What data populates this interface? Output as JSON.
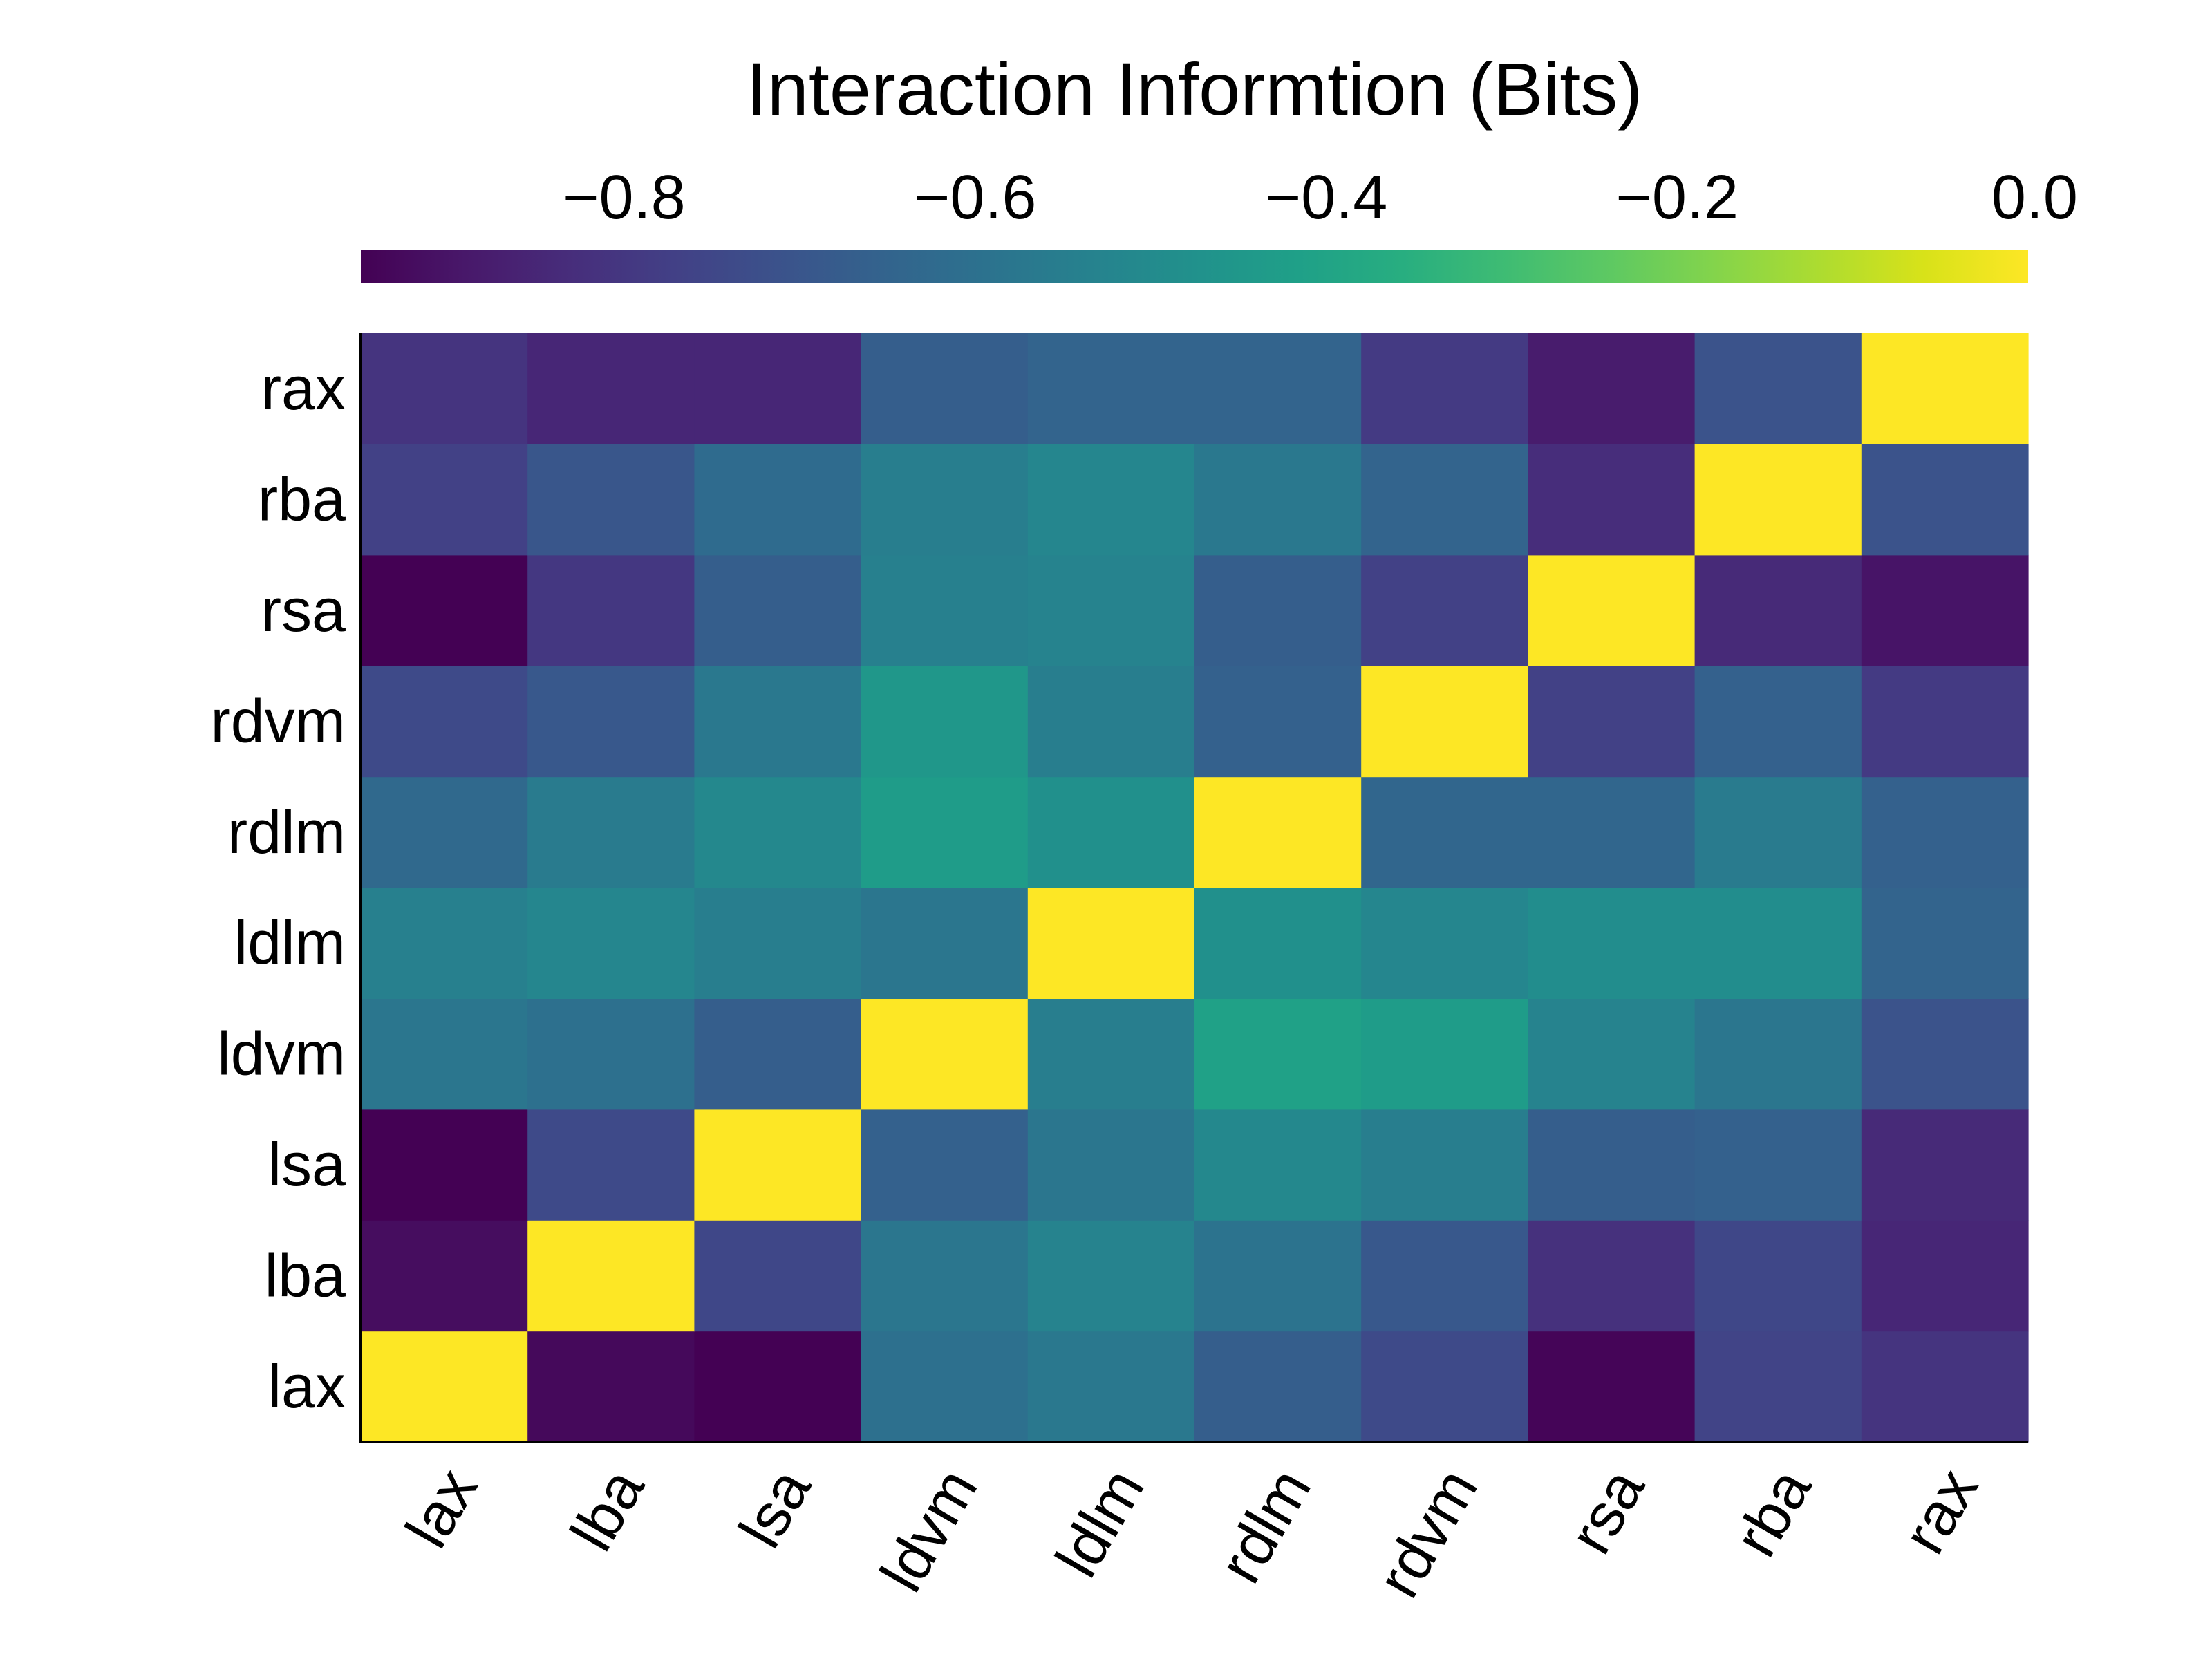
{
  "chart_data": {
    "type": "heatmap",
    "title": "",
    "colorbar": {
      "label": "Interaction Informtion (Bits)",
      "range": [
        -0.95,
        0.0
      ],
      "ticks": [
        -0.8,
        -0.6,
        -0.4,
        -0.2,
        0.0
      ],
      "tick_labels": [
        "−0.8",
        "−0.6",
        "−0.4",
        "−0.2",
        "0.0"
      ],
      "colormap": "viridis",
      "position": "top"
    },
    "x_labels": [
      "lax",
      "lba",
      "lsa",
      "ldvm",
      "ldlm",
      "rdlm",
      "rdvm",
      "rsa",
      "rba",
      "rax"
    ],
    "y_labels": [
      "lax",
      "lba",
      "lsa",
      "ldvm",
      "ldlm",
      "rdlm",
      "rdvm",
      "rsa",
      "rba",
      "rax"
    ],
    "values": [
      [
        0.0,
        -0.93,
        -0.95,
        -0.6,
        -0.57,
        -0.67,
        -0.74,
        -0.94,
        -0.76,
        -0.81
      ],
      [
        -0.92,
        0.0,
        -0.75,
        -0.58,
        -0.53,
        -0.59,
        -0.69,
        -0.82,
        -0.75,
        -0.85
      ],
      [
        -0.95,
        -0.74,
        0.0,
        -0.66,
        -0.58,
        -0.51,
        -0.55,
        -0.67,
        -0.66,
        -0.84
      ],
      [
        -0.58,
        -0.6,
        -0.67,
        0.0,
        -0.55,
        -0.41,
        -0.43,
        -0.53,
        -0.58,
        -0.71
      ],
      [
        -0.54,
        -0.52,
        -0.55,
        -0.58,
        0.0,
        -0.48,
        -0.52,
        -0.49,
        -0.49,
        -0.65
      ],
      [
        -0.63,
        -0.56,
        -0.51,
        -0.43,
        -0.48,
        0.0,
        -0.64,
        -0.64,
        -0.56,
        -0.66
      ],
      [
        -0.74,
        -0.69,
        -0.57,
        -0.45,
        -0.55,
        -0.66,
        0.0,
        -0.77,
        -0.66,
        -0.79
      ],
      [
        -0.95,
        -0.8,
        -0.67,
        -0.54,
        -0.53,
        -0.67,
        -0.77,
        0.0,
        -0.84,
        -0.9
      ],
      [
        -0.77,
        -0.7,
        -0.62,
        -0.55,
        -0.52,
        -0.57,
        -0.65,
        -0.83,
        0.0,
        -0.71
      ],
      [
        -0.81,
        -0.85,
        -0.85,
        -0.67,
        -0.65,
        -0.65,
        -0.79,
        -0.88,
        -0.71,
        0.0
      ]
    ]
  }
}
